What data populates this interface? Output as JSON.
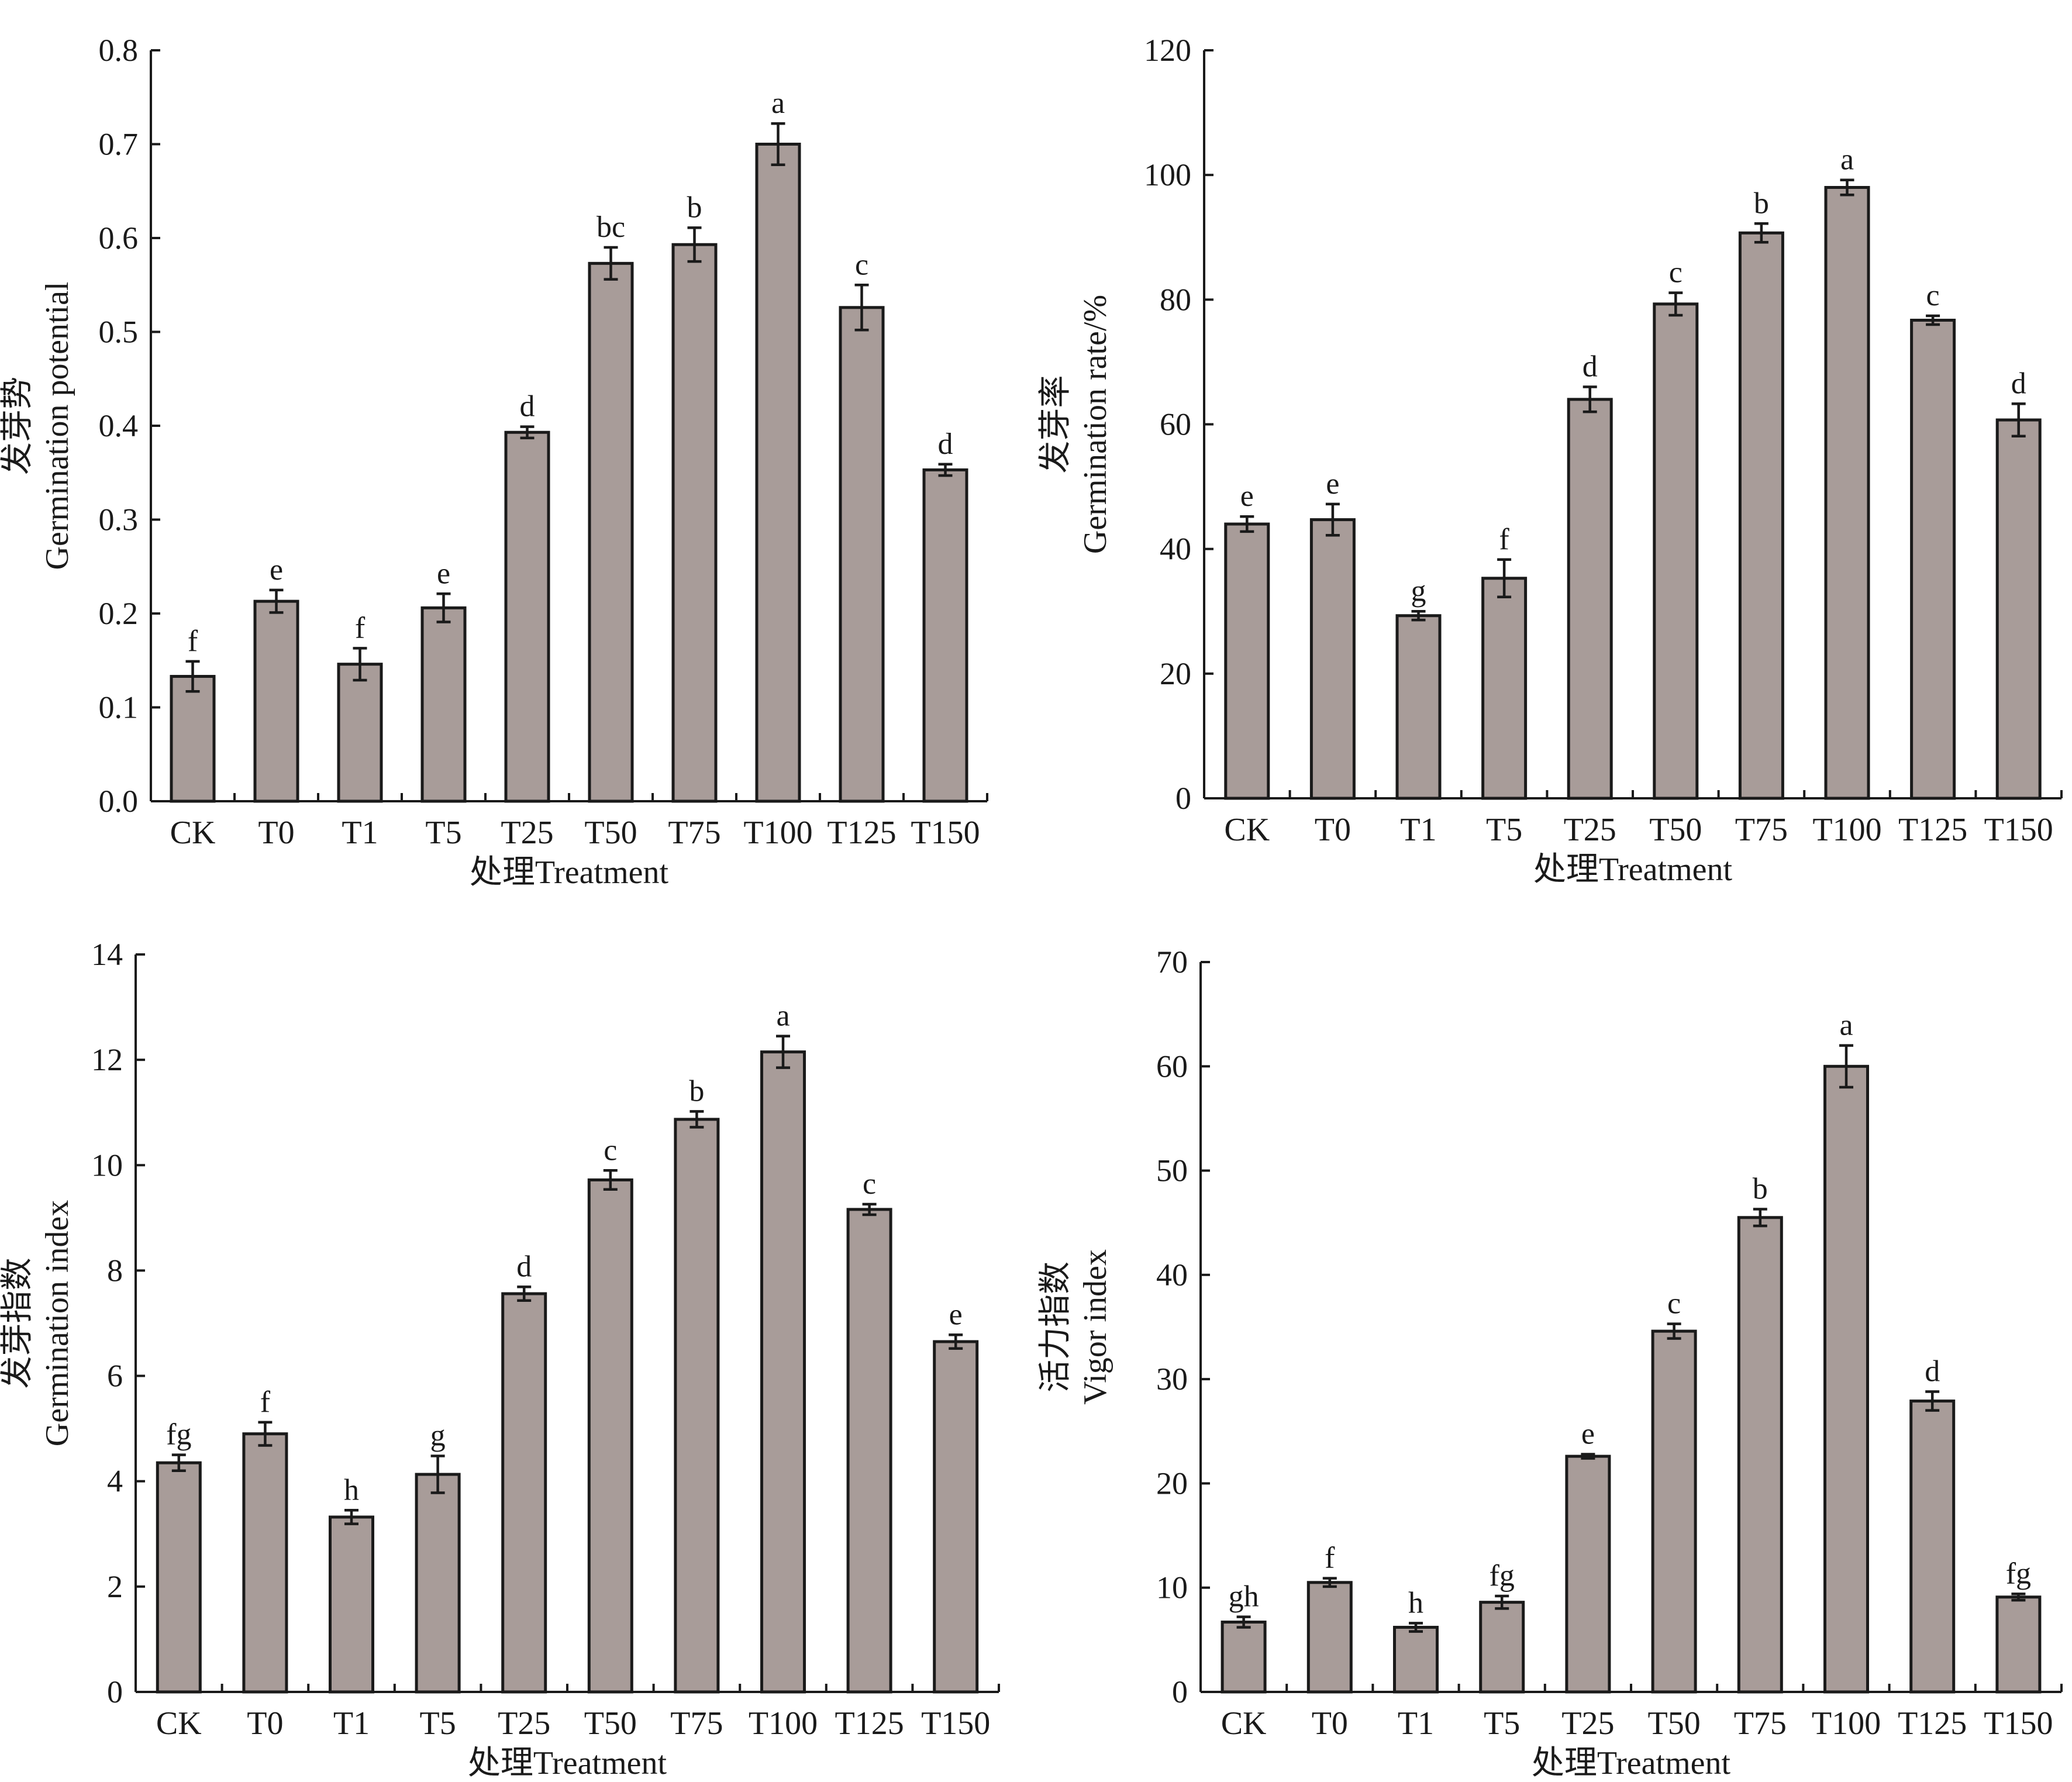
{
  "chart_data": [
    {
      "type": "bar",
      "categories": [
        "CK",
        "T0",
        "T1",
        "T5",
        "T25",
        "T50",
        "T75",
        "T100",
        "T125",
        "T150"
      ],
      "values": [
        0.133,
        0.213,
        0.146,
        0.206,
        0.393,
        0.573,
        0.593,
        0.7,
        0.526,
        0.353
      ],
      "errors": [
        0.016,
        0.012,
        0.017,
        0.015,
        0.006,
        0.017,
        0.018,
        0.022,
        0.024,
        0.006
      ],
      "significance": [
        "f",
        "e",
        "f",
        "e",
        "d",
        "bc",
        "b",
        "a",
        "c",
        "d"
      ],
      "ylabel_cn": "发芽势",
      "ylabel_en": "Germination potential",
      "xlabel": "处理Treatment",
      "ylim": [
        0,
        0.8
      ],
      "yticks": [
        "0.0",
        "0.1",
        "0.2",
        "0.3",
        "0.4",
        "0.5",
        "0.6",
        "0.7",
        "0.8"
      ],
      "bar_color": "#a89c99"
    },
    {
      "type": "bar",
      "categories": [
        "CK",
        "T0",
        "T1",
        "T5",
        "T25",
        "T50",
        "T75",
        "T100",
        "T125",
        "T150"
      ],
      "values": [
        44.0,
        44.7,
        29.3,
        35.3,
        64.0,
        79.3,
        90.7,
        98.0,
        76.7,
        60.7
      ],
      "errors": [
        1.2,
        2.5,
        0.7,
        3.0,
        2.0,
        1.8,
        1.5,
        1.2,
        0.7,
        2.6
      ],
      "significance": [
        "e",
        "e",
        "g",
        "f",
        "d",
        "c",
        "b",
        "a",
        "c",
        "d"
      ],
      "ylabel_cn": "发芽率",
      "ylabel_en": "Germination rate/%",
      "xlabel": "处理Treatment",
      "ylim": [
        0,
        120
      ],
      "yticks": [
        "0",
        "20",
        "40",
        "60",
        "80",
        "100",
        "120"
      ],
      "bar_color": "#a89c99"
    },
    {
      "type": "bar",
      "categories": [
        "CK",
        "T0",
        "T1",
        "T5",
        "T25",
        "T50",
        "T75",
        "T100",
        "T125",
        "T150"
      ],
      "values": [
        4.35,
        4.9,
        3.32,
        4.13,
        7.56,
        9.72,
        10.87,
        12.15,
        9.16,
        6.65
      ],
      "errors": [
        0.15,
        0.22,
        0.13,
        0.35,
        0.13,
        0.18,
        0.15,
        0.3,
        0.1,
        0.13
      ],
      "significance": [
        "fg",
        "f",
        "h",
        "g",
        "d",
        "c",
        "b",
        "a",
        "c",
        "e"
      ],
      "ylabel_cn": "发芽指数",
      "ylabel_en": "Germination index",
      "xlabel": "处理Treatment",
      "ylim": [
        0,
        14
      ],
      "yticks": [
        "0",
        "2",
        "4",
        "6",
        "8",
        "10",
        "12",
        "14"
      ],
      "bar_color": "#a89c99"
    },
    {
      "type": "bar",
      "categories": [
        "CK",
        "T0",
        "T1",
        "T5",
        "T25",
        "T50",
        "T75",
        "T100",
        "T125",
        "T150"
      ],
      "values": [
        6.7,
        10.5,
        6.2,
        8.6,
        22.6,
        34.6,
        45.5,
        60.0,
        27.9,
        9.1
      ],
      "errors": [
        0.5,
        0.4,
        0.4,
        0.6,
        0.2,
        0.7,
        0.8,
        2.0,
        0.9,
        0.3
      ],
      "significance": [
        "gh",
        "f",
        "h",
        "fg",
        "e",
        "c",
        "b",
        "a",
        "d",
        "fg"
      ],
      "ylabel_cn": "活力指数",
      "ylabel_en": "Vigor index",
      "xlabel": "处理Treatment",
      "ylim": [
        0,
        70
      ],
      "yticks": [
        "0",
        "10",
        "20",
        "30",
        "40",
        "50",
        "60",
        "70"
      ],
      "bar_color": "#a89c99"
    }
  ]
}
